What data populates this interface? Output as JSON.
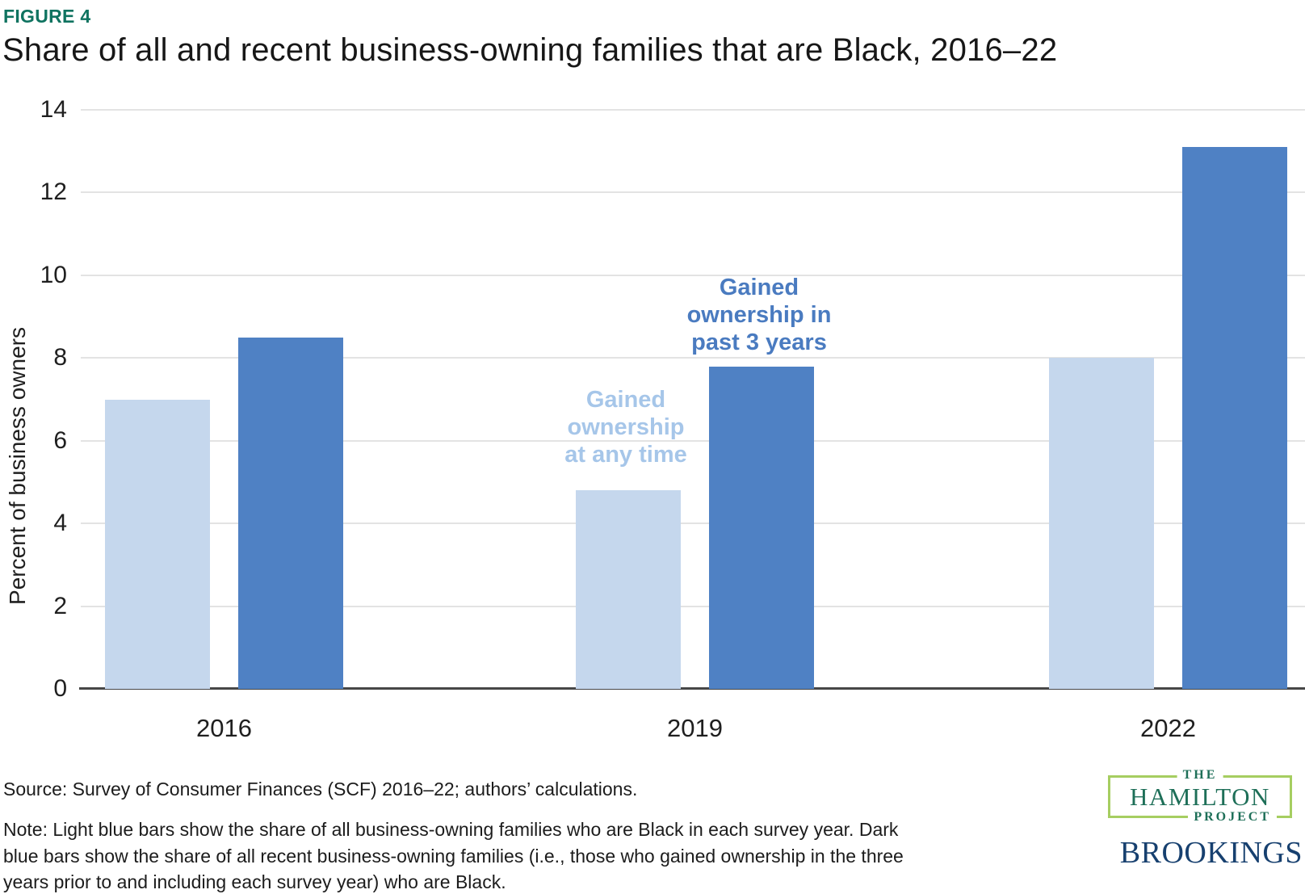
{
  "header": {
    "figure_label": "FIGURE 4",
    "title": "Share of all and recent business-owning families that are Black, 2016–22"
  },
  "chart_data": {
    "type": "bar",
    "title": "Share of all and recent business-owning families that are Black, 2016–22",
    "categories": [
      "2016",
      "2019",
      "2022"
    ],
    "series": [
      {
        "name": "Gained ownership at any time",
        "color": "#c5d7ed",
        "values": [
          7.0,
          4.8,
          8.0
        ]
      },
      {
        "name": "Gained ownership in past 3 years",
        "color": "#4f81c4",
        "values": [
          8.5,
          7.8,
          13.1
        ]
      }
    ],
    "xlabel": "",
    "ylabel": "Percent of business owners",
    "ylim": [
      0,
      14
    ],
    "yticks": [
      0,
      2,
      4,
      6,
      8,
      10,
      12,
      14
    ],
    "grid": true,
    "legend_position": "in-plot text annotations",
    "annotations": [
      {
        "lines": [
          "Gained",
          "ownership",
          "at any time"
        ],
        "series": "Gained ownership at any time",
        "color": "#a6c6e9"
      },
      {
        "lines": [
          "Gained",
          "ownership in",
          "past 3 years"
        ],
        "series": "Gained ownership in past 3 years",
        "color": "#4a7bc0"
      }
    ]
  },
  "footer": {
    "source": "Source: Survey of Consumer Finances (SCF) 2016–22; authors’ calculations.",
    "note_lines": [
      "Note: Light blue bars show the share of all business-owning families who are Black in each survey year. Dark",
      "blue bars show the share of all recent business-owning families (i.e., those who gained ownership in the three",
      "years prior to and including each survey year) who are Black."
    ],
    "logos": {
      "hamilton_the": "THE",
      "hamilton_name": "HAMILTON",
      "hamilton_project": "PROJECT",
      "brookings": "BROOKINGS"
    }
  },
  "colors": {
    "figure_label": "#0f7360",
    "bar_light": "#c5d7ed",
    "bar_dark": "#4f81c4",
    "annotation_light": "#a6c6e9",
    "annotation_dark": "#4a7bc0",
    "gridline": "#e3e3e3",
    "axis_line": "#474747",
    "hamilton_green": "#1e6f58",
    "hamilton_border": "#a6ce61",
    "brookings_navy": "#17406f"
  }
}
